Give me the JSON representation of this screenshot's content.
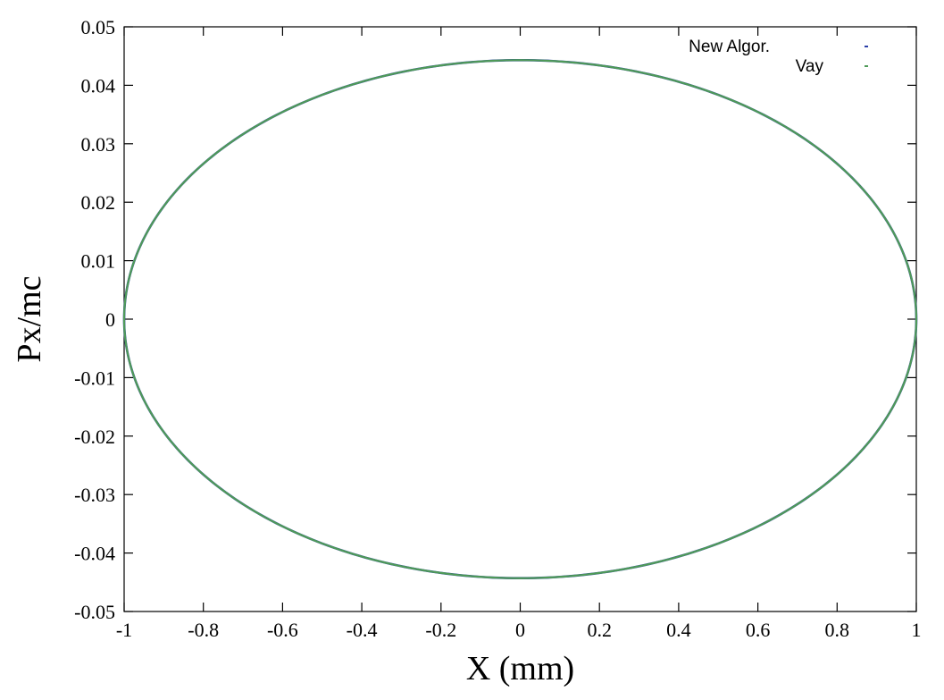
{
  "chart_data": {
    "type": "line",
    "title": "",
    "xlabel": "X (mm)",
    "ylabel": "Px/mc",
    "xlim": [
      -1,
      1
    ],
    "ylim": [
      -0.05,
      0.05
    ],
    "grid": false,
    "legend_position": "top-right",
    "x_ticks": [
      "-1",
      "-0.8",
      "-0.6",
      "-0.4",
      "-0.2",
      "0",
      "0.2",
      "0.4",
      "0.6",
      "0.8",
      "1"
    ],
    "x_tick_values": [
      -1,
      -0.8,
      -0.6,
      -0.4,
      -0.2,
      0,
      0.2,
      0.4,
      0.6,
      0.8,
      1
    ],
    "y_ticks": [
      "0.05",
      "0.04",
      "0.03",
      "0.02",
      "0.01",
      "0",
      "-0.01",
      "-0.02",
      "-0.03",
      "-0.04",
      "-0.05"
    ],
    "y_tick_values": [
      0.05,
      0.04,
      0.03,
      0.02,
      0.01,
      0,
      -0.01,
      -0.02,
      -0.03,
      -0.04,
      -0.05
    ],
    "series": [
      {
        "name": "New Algor.",
        "color": "#2b3fa8",
        "shape": "ellipse",
        "x_amplitude": 1.0,
        "y_amplitude": 0.0443,
        "x": [
          1,
          0.866,
          0.5,
          0,
          -0.5,
          -0.866,
          -1,
          -0.866,
          -0.5,
          0,
          0.5,
          0.866,
          1
        ],
        "y": [
          0,
          0.0222,
          0.0384,
          0.0443,
          0.0384,
          0.0222,
          0,
          -0.0222,
          -0.0384,
          -0.0443,
          -0.0384,
          -0.0222,
          0
        ]
      },
      {
        "name": "Vay",
        "color": "#4f9a58",
        "shape": "ellipse",
        "x_amplitude": 1.0,
        "y_amplitude": 0.0443,
        "x": [
          1,
          0.866,
          0.5,
          0,
          -0.5,
          -0.866,
          -1,
          -0.866,
          -0.5,
          0,
          0.5,
          0.866,
          1
        ],
        "y": [
          0,
          0.0222,
          0.0384,
          0.0443,
          0.0384,
          0.0222,
          0,
          -0.0222,
          -0.0384,
          -0.0443,
          -0.0384,
          -0.0222,
          0
        ]
      }
    ]
  }
}
